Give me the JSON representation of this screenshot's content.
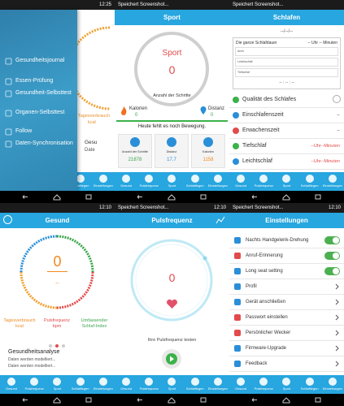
{
  "tabs": [
    "Gesund",
    "Pulsfrequenz",
    "Sport",
    "Schlafliegen",
    "Einstellungen"
  ],
  "screens": [
    {
      "time": "12:25",
      "menu": [
        "Gesundheitsjournal",
        "Essen-Prüfung",
        "Gesundheit-Selbsttest",
        "Organen-Selbsttest",
        "Follow",
        "Daten-Synchronisation"
      ],
      "behind": {
        "label": "Tagesverbrauch",
        "unit": "kcal",
        "title": "Gesu",
        "note": "Date"
      }
    },
    {
      "notice": "Speichert Screenshot...",
      "title": "Sport",
      "ring_title": "Sport",
      "ring_value": "0",
      "steps_label": "Anzahl der Schritte",
      "calories": {
        "label": "Kalorien",
        "value": "0"
      },
      "distance": {
        "label": "Distanz",
        "value": "0"
      },
      "message": "Heute fehlt es noch Bewegung.",
      "cards": [
        {
          "label": "Anzahl der Schritte",
          "value": "21878"
        },
        {
          "label": "Distanz",
          "value": "17.7"
        },
        {
          "label": "Kalorien",
          "value": "1158"
        }
      ]
    },
    {
      "notice": "Speichert Screenshot...",
      "title": "Schlafen",
      "date": "--/--/--",
      "total_label": "Die ganze Schlafdauer",
      "total_value": "-- Uhr -- Minuten",
      "fields": [
        "Anch",
        "Leichtschlaf",
        "Tiefschlaf"
      ],
      "range": "-- : -- : --",
      "list": [
        {
          "label": "Qualität des Schlafes"
        },
        {
          "label": "Einschlafenszeit",
          "value": "--"
        },
        {
          "label": "Erwachenszeit",
          "value": "--"
        },
        {
          "label": "Tiefschlaf",
          "value": "--Uhr--Minuten"
        },
        {
          "label": "Leichtschlaf",
          "value": "--Uhr--Minuten"
        }
      ]
    },
    {
      "time": "12:10",
      "title": "Gesund",
      "value": "0",
      "sub": "--",
      "metrics": [
        "Tagesverbrauch kcal",
        "Pulsfrequenz bpm",
        "Umfassender Schlaf-Index"
      ],
      "analysis_title": "Gesundheitsanalyse",
      "analysis_lines": [
        "Daten werden modelliert...",
        "Daten werden modelliert..."
      ]
    },
    {
      "notice": "Speichert Screenshot...",
      "time": "12:10",
      "title": "Pulsfrequenz",
      "value": "0",
      "prompt": "Ihre Pulsfrequenz testen"
    },
    {
      "notice": "Speichert Screenshot...",
      "time": "12:10",
      "title": "Einstellungen",
      "toggles": [
        "Nachts Handgelenk-Drehung",
        "Anruf-Erinnerung",
        "Long seat setting"
      ],
      "links": [
        "Profil",
        "Gerät anschließen",
        "Passwort einstellen",
        "Persönlicher Wecker",
        "Firmware-Upgrade",
        "Feedback"
      ]
    }
  ]
}
